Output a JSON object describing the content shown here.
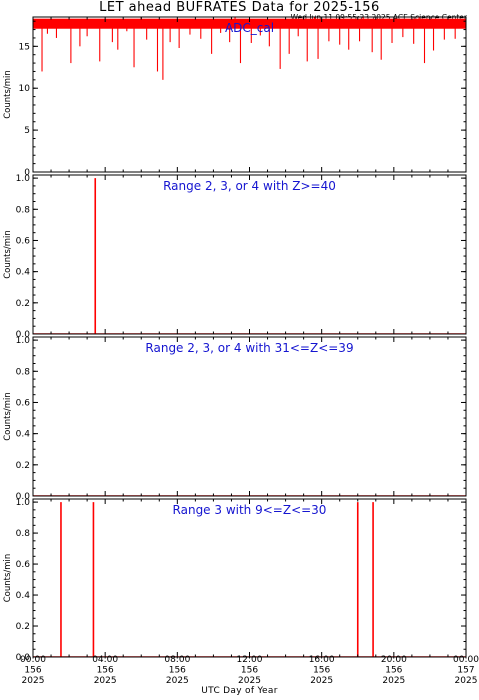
{
  "title": "LET ahead BUFRATES Data for 2025-156",
  "timestamp": "Wed Jun 11 09:55:23 2025 ACE Science Center",
  "colors": {
    "data": "#ff0000",
    "panel_title": "#1515d0",
    "axes": "#000000"
  },
  "chart_data": [
    {
      "type": "line",
      "title": "ADC_cal",
      "ylabel": "Counts/min",
      "ylim": [
        0,
        18.5
      ],
      "yticks": [
        0,
        5,
        10,
        15
      ],
      "ytick_labels": [
        "0",
        "5",
        "10",
        "15"
      ],
      "baseline": 17.6,
      "band": [
        17.1,
        18.3
      ],
      "dips": [
        [
          0.5,
          12.0
        ],
        [
          0.8,
          16.5
        ],
        [
          1.3,
          16.0
        ],
        [
          2.1,
          13.0
        ],
        [
          2.6,
          15.0
        ],
        [
          3.0,
          16.2
        ],
        [
          3.7,
          13.2
        ],
        [
          4.4,
          15.5
        ],
        [
          4.7,
          14.6
        ],
        [
          5.2,
          16.8
        ],
        [
          5.6,
          12.5
        ],
        [
          6.3,
          15.8
        ],
        [
          6.9,
          12.0
        ],
        [
          7.2,
          11.0
        ],
        [
          7.6,
          15.5
        ],
        [
          8.1,
          14.8
        ],
        [
          8.7,
          16.4
        ],
        [
          9.3,
          15.9
        ],
        [
          9.9,
          14.1
        ],
        [
          10.4,
          16.6
        ],
        [
          10.9,
          15.5
        ],
        [
          11.5,
          13.0
        ],
        [
          12.1,
          15.4
        ],
        [
          12.6,
          16.3
        ],
        [
          13.1,
          15.0
        ],
        [
          13.7,
          12.3
        ],
        [
          14.2,
          14.1
        ],
        [
          14.7,
          16.2
        ],
        [
          15.2,
          13.2
        ],
        [
          15.8,
          13.5
        ],
        [
          16.4,
          15.6
        ],
        [
          17.0,
          15.2
        ],
        [
          17.5,
          14.6
        ],
        [
          18.1,
          15.6
        ],
        [
          18.8,
          14.3
        ],
        [
          19.3,
          13.4
        ],
        [
          19.9,
          15.4
        ],
        [
          20.5,
          16.1
        ],
        [
          21.1,
          15.3
        ],
        [
          21.7,
          13.0
        ],
        [
          22.2,
          14.5
        ],
        [
          22.8,
          15.8
        ],
        [
          23.4,
          15.9
        ]
      ],
      "spikes": [
        [
          6.0,
          18.9
        ],
        [
          11.2,
          18.9
        ],
        [
          15.6,
          18.9
        ],
        [
          18.3,
          18.9
        ],
        [
          21.4,
          18.9
        ]
      ]
    },
    {
      "type": "line",
      "title": "Range 2, 3, or 4 with Z>=40",
      "ylabel": "Counts/min",
      "ylim": [
        0,
        1.02
      ],
      "yticks": [
        0,
        0.2,
        0.4,
        0.6,
        0.8,
        1.0
      ],
      "ytick_labels": [
        "0.0",
        "0.2",
        "0.4",
        "0.6",
        "0.8",
        "1.0"
      ],
      "baseline": 0,
      "events": [
        [
          3.45,
          1.0
        ]
      ]
    },
    {
      "type": "line",
      "title": "Range 2, 3, or 4 with 31<=Z<=39",
      "ylabel": "Counts/min",
      "ylim": [
        0,
        1.02
      ],
      "yticks": [
        0,
        0.2,
        0.4,
        0.6,
        0.8,
        1.0
      ],
      "ytick_labels": [
        "0.0",
        "0.2",
        "0.4",
        "0.6",
        "0.8",
        "1.0"
      ],
      "baseline": 0,
      "events": []
    },
    {
      "type": "line",
      "title": "Range 3 with 9<=Z<=30",
      "ylabel": "Counts/min",
      "ylim": [
        0,
        1.02
      ],
      "yticks": [
        0,
        0.2,
        0.4,
        0.6,
        0.8,
        1.0
      ],
      "ytick_labels": [
        "0.0",
        "0.2",
        "0.4",
        "0.6",
        "0.8",
        "1.0"
      ],
      "baseline": 0,
      "events": [
        [
          1.55,
          1.0
        ],
        [
          3.35,
          1.0
        ],
        [
          18.0,
          1.0
        ],
        [
          18.85,
          1.0
        ]
      ]
    }
  ],
  "xaxis": {
    "title": "UTC Day of Year",
    "range_hours": [
      0,
      24
    ],
    "ticks_hours": [
      0,
      4,
      8,
      12,
      16,
      20,
      24
    ],
    "tick_labels": [
      [
        "00:00",
        "156",
        "2025"
      ],
      [
        "04:00",
        "156",
        "2025"
      ],
      [
        "08:00",
        "156",
        "2025"
      ],
      [
        "12:00",
        "156",
        "2025"
      ],
      [
        "16:00",
        "156",
        "2025"
      ],
      [
        "20:00",
        "156",
        "2025"
      ],
      [
        "00:00",
        "157",
        "2025"
      ]
    ]
  }
}
